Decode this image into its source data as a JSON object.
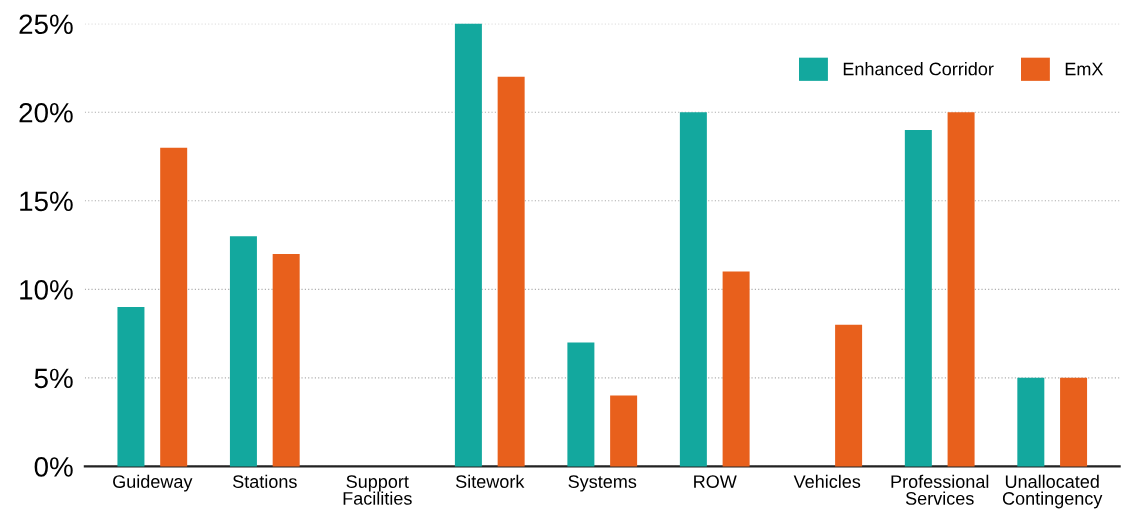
{
  "chart_data": {
    "type": "bar",
    "categories": [
      "Guideway",
      "Stations",
      "Support\nFacilities",
      "Sitework",
      "Systems",
      "ROW",
      "Vehicles",
      "Professional\nServices",
      "Unallocated\nContingency"
    ],
    "series": [
      {
        "name": "Enhanced Corridor",
        "color": "#13a89e",
        "values": [
          9,
          13,
          0,
          25,
          7,
          20,
          0,
          19,
          5
        ]
      },
      {
        "name": "EmX",
        "color": "#e8601c",
        "values": [
          18,
          12,
          0,
          22,
          4,
          11,
          8,
          20,
          5
        ]
      }
    ],
    "ylim": [
      0,
      25
    ],
    "yticks": [
      {
        "value": 0,
        "label": "0%"
      },
      {
        "value": 5,
        "label": "5%"
      },
      {
        "value": 10,
        "label": "10%"
      },
      {
        "value": 15,
        "label": "15%"
      },
      {
        "value": 20,
        "label": "20%"
      },
      {
        "value": 25,
        "label": "25%"
      }
    ],
    "grid": "y",
    "legend": "top right"
  }
}
